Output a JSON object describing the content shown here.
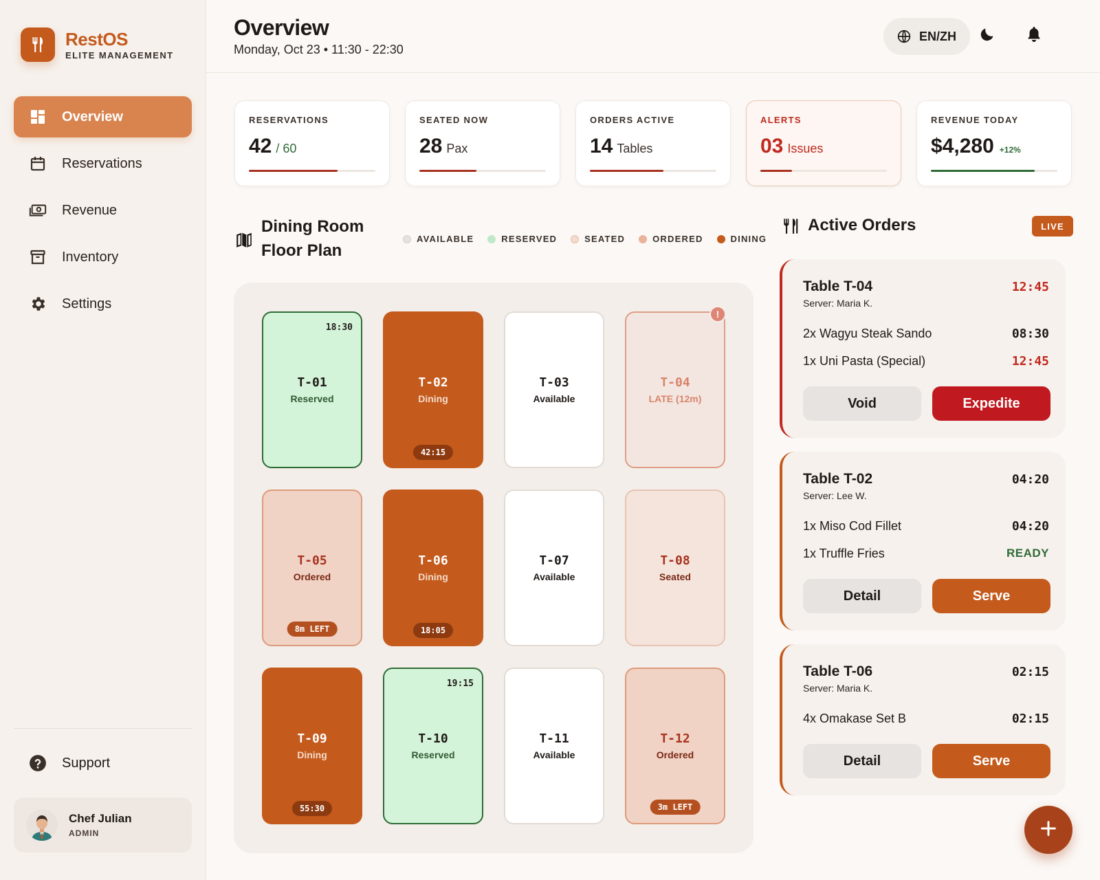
{
  "brand": {
    "name": "RestOS",
    "subtitle": "ELITE MANAGEMENT"
  },
  "nav": [
    {
      "label": "Overview",
      "icon": "dashboard-icon",
      "active": true
    },
    {
      "label": "Reservations",
      "icon": "calendar-icon",
      "active": false
    },
    {
      "label": "Revenue",
      "icon": "cash-icon",
      "active": false
    },
    {
      "label": "Inventory",
      "icon": "archive-box-icon",
      "active": false
    },
    {
      "label": "Settings",
      "icon": "gear-icon",
      "active": false
    }
  ],
  "support": {
    "label": "Support"
  },
  "user": {
    "name": "Chef Julian",
    "role": "ADMIN"
  },
  "header": {
    "title": "Overview",
    "subtitle": "Monday, Oct 23 • 11:30 - 22:30",
    "lang_label": "EN/ZH"
  },
  "stats": [
    {
      "label": "RESERVATIONS",
      "value": "42",
      "unit": "/ 60",
      "progress": 0.7
    },
    {
      "label": "SEATED NOW",
      "value": "28",
      "unit": "Pax",
      "progress": 0.45
    },
    {
      "label": "ORDERS ACTIVE",
      "value": "14",
      "unit": "Tables",
      "progress": 0.58
    },
    {
      "label": "ALERTS",
      "value": "03",
      "unit": "Issues",
      "progress": 0.25
    },
    {
      "label": "REVENUE TODAY",
      "value": "$4,280",
      "delta": "+12%",
      "progress": 0.82
    }
  ],
  "floor": {
    "title": "Dining Room Floor Plan",
    "legend": [
      {
        "label": "AVAILABLE",
        "color": "#e6e2de"
      },
      {
        "label": "RESERVED",
        "color": "#bfe8c8"
      },
      {
        "label": "SEATED",
        "color": "#f3dccf"
      },
      {
        "label": "ORDERED",
        "color": "#eab39a"
      },
      {
        "label": "DINING",
        "color": "#c45a1c"
      }
    ],
    "tables": [
      {
        "code": "T-01",
        "status": "Reserved",
        "time": "18:30"
      },
      {
        "code": "T-02",
        "status": "Dining",
        "timer": "42:15"
      },
      {
        "code": "T-03",
        "status": "Available"
      },
      {
        "code": "T-04",
        "status": "LATE (12m)",
        "alert": "!"
      },
      {
        "code": "T-05",
        "status": "Ordered",
        "timer": "8m LEFT"
      },
      {
        "code": "T-06",
        "status": "Dining",
        "timer": "18:05"
      },
      {
        "code": "T-07",
        "status": "Available"
      },
      {
        "code": "T-08",
        "status": "Seated"
      },
      {
        "code": "T-09",
        "status": "Dining",
        "timer": "55:30"
      },
      {
        "code": "T-10",
        "status": "Reserved",
        "time": "19:15"
      },
      {
        "code": "T-11",
        "status": "Available"
      },
      {
        "code": "T-12",
        "status": "Ordered",
        "timer": "3m LEFT"
      }
    ]
  },
  "orders": {
    "title": "Active Orders",
    "live_label": "LIVE",
    "items": [
      {
        "table": "Table T-04",
        "server": "Server: Maria K.",
        "time": "12:45",
        "lines": [
          {
            "item": "2x Wagyu Steak Sando",
            "time": "08:30"
          },
          {
            "item": "1x Uni Pasta (Special)",
            "time": "12:45"
          }
        ],
        "secondary": "Void",
        "primary": "Expedite"
      },
      {
        "table": "Table T-02",
        "server": "Server: Lee W.",
        "time": "04:20",
        "lines": [
          {
            "item": "1x Miso Cod Fillet",
            "time": "04:20"
          },
          {
            "item": "1x Truffle Fries",
            "time": "READY"
          }
        ],
        "secondary": "Detail",
        "primary": "Serve"
      },
      {
        "table": "Table T-06",
        "server": "Server: Maria K.",
        "time": "02:15",
        "lines": [
          {
            "item": "4x Omakase Set B",
            "time": "02:15"
          }
        ],
        "secondary": "Detail",
        "primary": "Serve"
      }
    ]
  },
  "colors": {
    "accent": "#c45a1c",
    "danger": "#c0291f",
    "success": "#2f6b35"
  }
}
